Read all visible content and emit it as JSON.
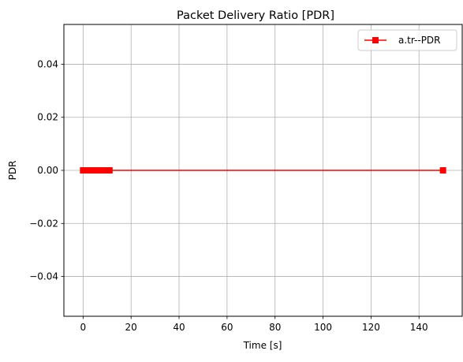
{
  "chart_data": {
    "type": "line",
    "title": "Packet Delivery Ratio [PDR]",
    "xlabel": "Time [s]",
    "ylabel": "PDR",
    "xlim": [
      -8,
      158
    ],
    "ylim": [
      -0.055,
      0.055
    ],
    "xticks": [
      0,
      20,
      40,
      60,
      80,
      100,
      120,
      140
    ],
    "xtick_labels": [
      "0",
      "20",
      "40",
      "60",
      "80",
      "100",
      "120",
      "140"
    ],
    "yticks": [
      -0.04,
      -0.02,
      0.0,
      0.02,
      0.04
    ],
    "ytick_labels": [
      "−0.04",
      "−0.02",
      "0.00",
      "0.02",
      "0.04"
    ],
    "grid": true,
    "legend_position": "top-right",
    "series": [
      {
        "name": "a.tr--PDR",
        "color": "#ff0000",
        "marker": "square",
        "x": [
          0,
          0.5,
          1,
          1.5,
          2,
          2.5,
          3,
          3.5,
          4,
          4.5,
          5,
          5.5,
          6,
          6.5,
          7,
          7.5,
          8,
          8.5,
          9,
          9.5,
          10,
          10.5,
          11,
          150
        ],
        "y": [
          0,
          0,
          0,
          0,
          0,
          0,
          0,
          0,
          0,
          0,
          0,
          0,
          0,
          0,
          0,
          0,
          0,
          0,
          0,
          0,
          0,
          0,
          0,
          0
        ]
      }
    ]
  }
}
